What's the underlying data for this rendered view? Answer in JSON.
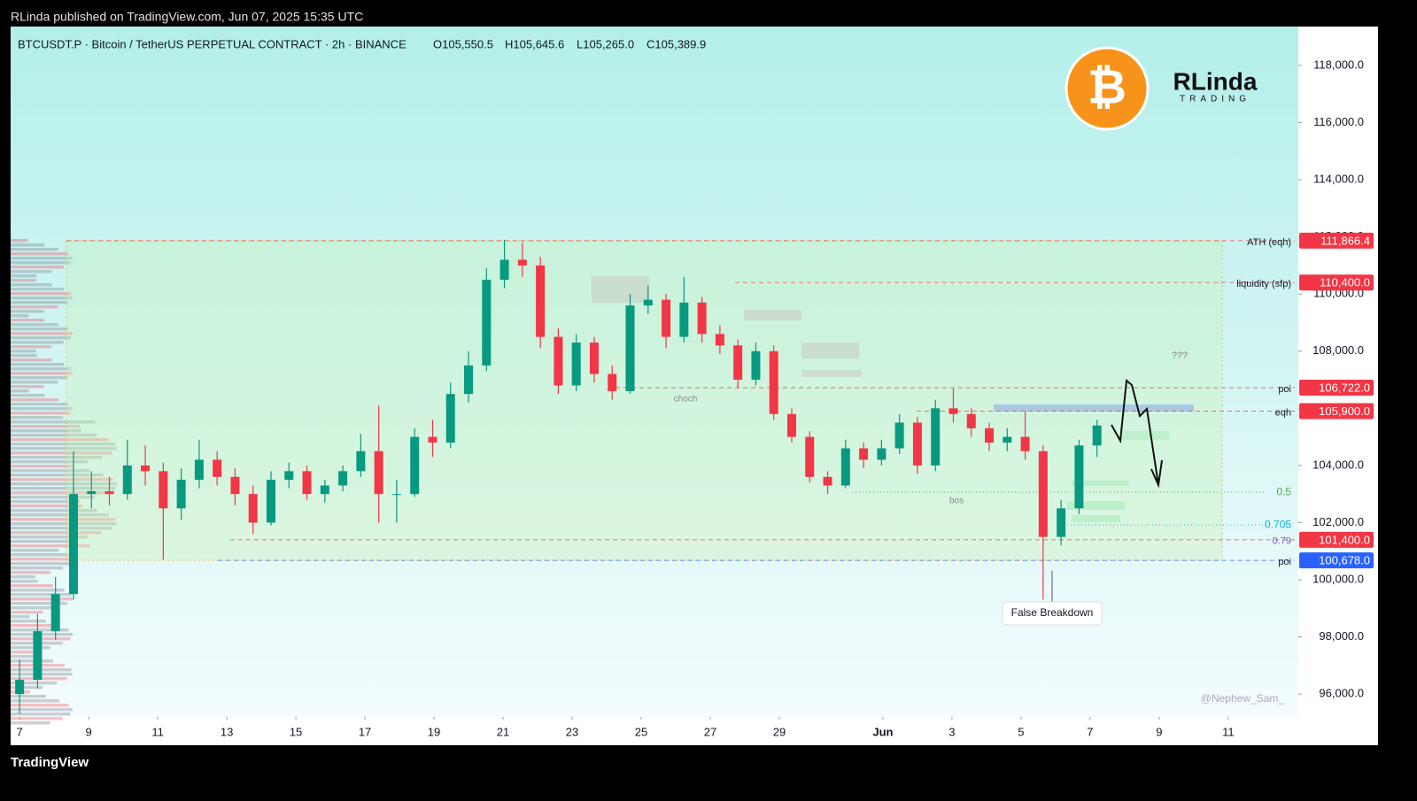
{
  "header": {
    "published": "RLinda published on TradingView.com, Jun 07, 2025 15:35 UTC",
    "symbol": "BTCUSDT.P · Bitcoin / TetherUS PERPETUAL CONTRACT · 2h · BINANCE",
    "ohlc": [
      "O105,550.5",
      "H105,645.6",
      "L105,265.0",
      "C105,389.9"
    ]
  },
  "logo": {
    "symbol": "₿",
    "brand": "RLinda",
    "brand_sub": "TRADING"
  },
  "footer": {
    "brand": "TradingView"
  },
  "chart_data": {
    "type": "candlestick",
    "x": [
      0,
      0.52,
      1.04,
      1.56,
      2.08,
      2.6,
      3.12,
      3.64,
      4.16,
      4.68,
      5.2,
      5.72,
      6.24,
      6.76,
      7.28,
      7.8,
      8.32,
      8.84,
      9.36,
      9.88,
      10.4,
      10.92,
      11.44,
      11.96,
      12.48,
      13,
      13.52,
      14.04,
      14.56,
      15.08,
      15.6,
      16.12,
      16.64,
      17.16,
      17.68,
      18.2,
      18.72,
      19.24,
      19.76,
      20.28,
      20.8,
      21.32,
      21.84,
      22.36,
      22.88,
      23.4,
      23.92,
      24.44,
      24.96,
      25.48,
      26,
      26.52,
      27.04,
      27.56,
      28.08,
      28.6,
      29.12,
      29.64,
      30.16,
      30.68,
      31.2
    ],
    "ohlc": [
      [
        96000,
        97200,
        95300,
        96500
      ],
      [
        96500,
        98800,
        96200,
        98200
      ],
      [
        98200,
        100100,
        97900,
        99500
      ],
      [
        99500,
        104500,
        99300,
        103000
      ],
      [
        103000,
        103800,
        102500,
        103100
      ],
      [
        103100,
        103600,
        102600,
        103000
      ],
      [
        103000,
        104900,
        102800,
        104000
      ],
      [
        104000,
        104700,
        103300,
        103800
      ],
      [
        103800,
        104100,
        100700,
        102500
      ],
      [
        102500,
        103900,
        102100,
        103500
      ],
      [
        103500,
        104900,
        103200,
        104200
      ],
      [
        104200,
        104500,
        103300,
        103600
      ],
      [
        103600,
        103900,
        102600,
        103000
      ],
      [
        103000,
        103300,
        101600,
        102000
      ],
      [
        102000,
        103800,
        101900,
        103500
      ],
      [
        103500,
        104100,
        103200,
        103800
      ],
      [
        103800,
        104000,
        102800,
        103000
      ],
      [
        103000,
        103500,
        102700,
        103300
      ],
      [
        103300,
        104000,
        103100,
        103800
      ],
      [
        103800,
        105100,
        103600,
        104500
      ],
      [
        104500,
        106100,
        102000,
        103000
      ],
      [
        103000,
        103500,
        102000,
        103000
      ],
      [
        103000,
        105300,
        102900,
        105000
      ],
      [
        105000,
        105600,
        104300,
        104800
      ],
      [
        104800,
        106900,
        104600,
        106500
      ],
      [
        106500,
        108000,
        106200,
        107500
      ],
      [
        107500,
        110900,
        107300,
        110500
      ],
      [
        110500,
        111900,
        110200,
        111200
      ],
      [
        111200,
        111800,
        110600,
        111000
      ],
      [
        111000,
        111300,
        108100,
        108500
      ],
      [
        108500,
        108800,
        106500,
        106800
      ],
      [
        106800,
        108600,
        106600,
        108300
      ],
      [
        108300,
        108500,
        106900,
        107200
      ],
      [
        107200,
        107500,
        106300,
        106600
      ],
      [
        106600,
        110000,
        106500,
        109600
      ],
      [
        109600,
        110300,
        109300,
        109800
      ],
      [
        109800,
        110000,
        108100,
        108500
      ],
      [
        108500,
        110600,
        108300,
        109700
      ],
      [
        109700,
        109900,
        108300,
        108600
      ],
      [
        108600,
        108900,
        107900,
        108200
      ],
      [
        108200,
        108400,
        106700,
        107000
      ],
      [
        107000,
        108300,
        106800,
        108000
      ],
      [
        108000,
        108200,
        105600,
        105800
      ],
      [
        105800,
        106000,
        104800,
        105000
      ],
      [
        105000,
        105200,
        103400,
        103600
      ],
      [
        103600,
        103800,
        103000,
        103300
      ],
      [
        103300,
        104900,
        103200,
        104600
      ],
      [
        104600,
        104800,
        103900,
        104200
      ],
      [
        104200,
        104900,
        104000,
        104600
      ],
      [
        104600,
        105800,
        104400,
        105500
      ],
      [
        105500,
        105700,
        103700,
        104000
      ],
      [
        104000,
        106300,
        103800,
        106000
      ],
      [
        106000,
        106700,
        105500,
        105800
      ],
      [
        105800,
        106000,
        105000,
        105300
      ],
      [
        105300,
        105500,
        104500,
        104800
      ],
      [
        104800,
        105300,
        104500,
        105000
      ],
      [
        105000,
        105900,
        104200,
        104500
      ],
      [
        104500,
        104700,
        99300,
        101500
      ],
      [
        101500,
        102800,
        101200,
        102500
      ],
      [
        102500,
        104900,
        102300,
        104700
      ],
      [
        104700,
        105600,
        104300,
        105400
      ]
    ],
    "up_color": "#089981",
    "down_color": "#f23645",
    "xlim": [
      -0.26,
      37.03
    ],
    "xticks": [
      {
        "value": 0,
        "label": "7"
      },
      {
        "value": 2,
        "label": "9"
      },
      {
        "value": 4,
        "label": "11"
      },
      {
        "value": 6,
        "label": "13"
      },
      {
        "value": 8,
        "label": "15"
      },
      {
        "value": 10,
        "label": "17"
      },
      {
        "value": 12,
        "label": "19"
      },
      {
        "value": 14,
        "label": "21"
      },
      {
        "value": 16,
        "label": "23"
      },
      {
        "value": 18,
        "label": "25"
      },
      {
        "value": 20,
        "label": "27"
      },
      {
        "value": 22,
        "label": "29"
      },
      {
        "value": 25,
        "label": "Jun"
      },
      {
        "value": 27,
        "label": "3"
      },
      {
        "value": 29,
        "label": "5"
      },
      {
        "value": 31,
        "label": "7"
      },
      {
        "value": 33,
        "label": "9"
      },
      {
        "value": 35,
        "label": "11"
      }
    ],
    "ylim": [
      95200,
      119360
    ],
    "yticks": [
      {
        "value": 96000,
        "label": "96,000.0"
      },
      {
        "value": 98000,
        "label": "98,000.0"
      },
      {
        "value": 100000,
        "label": "100,000.0"
      },
      {
        "value": 102000,
        "label": "102,000.0"
      },
      {
        "value": 104000,
        "label": "104,000.0"
      },
      {
        "value": 106000,
        "label": "106,000.0"
      },
      {
        "value": 108000,
        "label": "108,000.0"
      },
      {
        "value": 110000,
        "label": "110,000.0"
      },
      {
        "value": 112000,
        "label": "112,000.0"
      },
      {
        "value": 114000,
        "label": "114,000.0"
      },
      {
        "value": 116000,
        "label": "116,000.0"
      },
      {
        "value": 118000,
        "label": "118,000.0"
      }
    ],
    "levels": [
      {
        "value": 111866.4,
        "label": "111,866.4",
        "name": "ATH (eqh)",
        "color": "#f23645"
      },
      {
        "value": 110400,
        "label": "110,400.0",
        "name": "liquidity (sfp)",
        "color": "#f23645"
      },
      {
        "value": 106722,
        "label": "106,722.0",
        "name": "poi",
        "color": "#f23645"
      },
      {
        "value": 105900,
        "label": "105,900.0",
        "name": "eqh",
        "color": "#f23645"
      },
      {
        "value": 101400,
        "label": "101,400.0",
        "name": "0.79",
        "color": "#f23645"
      },
      {
        "value": 100678,
        "label": "100,678.0",
        "name": "poi",
        "color": "#2962ff"
      }
    ],
    "fib": [
      {
        "value": 103063,
        "label": "0.5",
        "color": "#4caf50"
      },
      {
        "value": 101917,
        "label": "0.705",
        "color": "#00bcd4"
      }
    ],
    "annotations": [
      "choch",
      "bos",
      "???",
      "False Breakdown",
      "@Nephew_Sam_"
    ]
  }
}
